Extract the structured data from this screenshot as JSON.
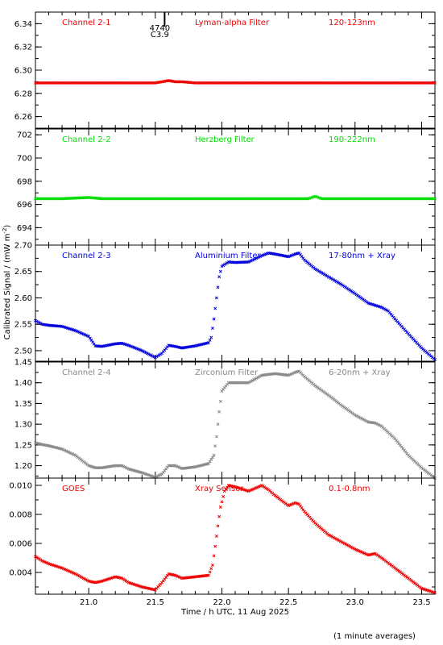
{
  "figure": {
    "xlabel": "Time / h UTC, 11 Aug 2025",
    "ylabel": "Calibrated Signal / (mW m",
    "ylabel_sup": "-2",
    "ylabel_end": ")",
    "footnote": "(1 minute averages)"
  },
  "marker": {
    "x": 21.57,
    "label_top": "4740",
    "label_bottom": "C3.9"
  },
  "chart_data": [
    {
      "type": "scatter",
      "channel": "Channel 2-1",
      "filter": "Lyman-alpha Filter",
      "band": "120-123nm",
      "color": "#ee0000",
      "xlim": [
        20.6,
        23.6
      ],
      "ylim": [
        6.25,
        6.35
      ],
      "yticks": [
        6.26,
        6.28,
        6.3,
        6.32,
        6.34
      ],
      "yticklabels": [
        "6.26",
        "6.28",
        "6.30",
        "6.32",
        "6.34"
      ],
      "xticks": [
        21.0,
        21.5,
        22.0,
        22.5,
        23.0,
        23.5
      ],
      "points": [
        [
          20.6,
          6.289
        ],
        [
          20.8,
          6.289
        ],
        [
          21.0,
          6.289
        ],
        [
          21.2,
          6.289
        ],
        [
          21.4,
          6.289
        ],
        [
          21.5,
          6.289
        ],
        [
          21.55,
          6.29
        ],
        [
          21.6,
          6.291
        ],
        [
          21.65,
          6.29
        ],
        [
          21.7,
          6.29
        ],
        [
          21.8,
          6.289
        ],
        [
          22.0,
          6.289
        ],
        [
          22.2,
          6.289
        ],
        [
          22.4,
          6.289
        ],
        [
          22.6,
          6.289
        ],
        [
          22.8,
          6.289
        ],
        [
          23.0,
          6.289
        ],
        [
          23.2,
          6.289
        ],
        [
          23.4,
          6.289
        ],
        [
          23.6,
          6.289
        ]
      ]
    },
    {
      "type": "scatter",
      "channel": "Channel 2-2",
      "filter": "Herzberg Filter",
      "band": "190-222nm",
      "color": "#00dd00",
      "xlim": [
        20.6,
        23.6
      ],
      "ylim": [
        692.5,
        702.5
      ],
      "yticks": [
        694,
        696,
        698,
        700,
        702
      ],
      "yticklabels": [
        "694",
        "696",
        "698",
        "700",
        "702"
      ],
      "xticks": [
        21.0,
        21.5,
        22.0,
        22.5,
        23.0,
        23.5
      ],
      "points": [
        [
          20.6,
          696.5
        ],
        [
          20.8,
          696.5
        ],
        [
          21.0,
          696.6
        ],
        [
          21.1,
          696.5
        ],
        [
          21.3,
          696.5
        ],
        [
          21.5,
          696.5
        ],
        [
          21.7,
          696.5
        ],
        [
          21.9,
          696.5
        ],
        [
          22.1,
          696.5
        ],
        [
          22.3,
          696.5
        ],
        [
          22.5,
          696.5
        ],
        [
          22.65,
          696.5
        ],
        [
          22.7,
          696.7
        ],
        [
          22.75,
          696.5
        ],
        [
          22.9,
          696.5
        ],
        [
          23.1,
          696.5
        ],
        [
          23.3,
          696.5
        ],
        [
          23.5,
          696.5
        ],
        [
          23.6,
          696.5
        ]
      ]
    },
    {
      "type": "scatter",
      "channel": "Channel 2-3",
      "filter": "Aluminium Filter",
      "band": "17-80nm + Xray",
      "color": "#0000dd",
      "xlim": [
        20.6,
        23.6
      ],
      "ylim": [
        2.48,
        2.7
      ],
      "yticks": [
        2.5,
        2.55,
        2.6,
        2.65,
        2.7
      ],
      "yticklabels": [
        "2.50",
        "2.55",
        "2.60",
        "2.65",
        "2.70"
      ],
      "xticks": [
        21.0,
        21.5,
        22.0,
        22.5,
        23.0,
        23.5
      ],
      "points": [
        [
          20.6,
          2.557
        ],
        [
          20.65,
          2.55
        ],
        [
          20.7,
          2.548
        ],
        [
          20.8,
          2.546
        ],
        [
          20.9,
          2.538
        ],
        [
          21.0,
          2.527
        ],
        [
          21.05,
          2.509
        ],
        [
          21.1,
          2.508
        ],
        [
          21.2,
          2.513
        ],
        [
          21.25,
          2.514
        ],
        [
          21.3,
          2.51
        ],
        [
          21.4,
          2.5
        ],
        [
          21.5,
          2.487
        ],
        [
          21.55,
          2.495
        ],
        [
          21.6,
          2.51
        ],
        [
          21.65,
          2.508
        ],
        [
          21.7,
          2.505
        ],
        [
          21.8,
          2.509
        ],
        [
          21.85,
          2.512
        ],
        [
          21.9,
          2.515
        ],
        [
          21.92,
          2.525
        ],
        [
          21.94,
          2.56
        ],
        [
          21.96,
          2.6
        ],
        [
          21.98,
          2.64
        ],
        [
          22.0,
          2.66
        ],
        [
          22.05,
          2.668
        ],
        [
          22.1,
          2.667
        ],
        [
          22.2,
          2.668
        ],
        [
          22.3,
          2.68
        ],
        [
          22.35,
          2.685
        ],
        [
          22.4,
          2.683
        ],
        [
          22.5,
          2.678
        ],
        [
          22.55,
          2.683
        ],
        [
          22.58,
          2.685
        ],
        [
          22.62,
          2.672
        ],
        [
          22.7,
          2.655
        ],
        [
          22.8,
          2.64
        ],
        [
          22.9,
          2.625
        ],
        [
          23.0,
          2.608
        ],
        [
          23.1,
          2.59
        ],
        [
          23.2,
          2.582
        ],
        [
          23.25,
          2.575
        ],
        [
          23.3,
          2.56
        ],
        [
          23.4,
          2.532
        ],
        [
          23.5,
          2.505
        ],
        [
          23.6,
          2.483
        ]
      ]
    },
    {
      "type": "scatter",
      "channel": "Channel 2-4",
      "filter": "Zirconium Filter",
      "band": "6-20nm + Xray",
      "color": "#888888",
      "xlim": [
        20.6,
        23.6
      ],
      "ylim": [
        1.17,
        1.45
      ],
      "yticks": [
        1.2,
        1.25,
        1.3,
        1.35,
        1.4,
        1.45
      ],
      "yticklabels": [
        "1.20",
        "1.25",
        "1.30",
        "1.35",
        "1.40",
        "1.45"
      ],
      "xticks": [
        21.0,
        21.5,
        22.0,
        22.5,
        23.0,
        23.5
      ],
      "points": [
        [
          20.6,
          1.255
        ],
        [
          20.65,
          1.251
        ],
        [
          20.7,
          1.248
        ],
        [
          20.8,
          1.24
        ],
        [
          20.9,
          1.225
        ],
        [
          21.0,
          1.2
        ],
        [
          21.05,
          1.195
        ],
        [
          21.1,
          1.195
        ],
        [
          21.2,
          1.2
        ],
        [
          21.25,
          1.2
        ],
        [
          21.3,
          1.192
        ],
        [
          21.4,
          1.183
        ],
        [
          21.5,
          1.172
        ],
        [
          21.55,
          1.18
        ],
        [
          21.6,
          1.2
        ],
        [
          21.65,
          1.2
        ],
        [
          21.7,
          1.193
        ],
        [
          21.8,
          1.197
        ],
        [
          21.9,
          1.205
        ],
        [
          21.94,
          1.225
        ],
        [
          21.96,
          1.27
        ],
        [
          21.98,
          1.33
        ],
        [
          22.0,
          1.38
        ],
        [
          22.05,
          1.4
        ],
        [
          22.1,
          1.4
        ],
        [
          22.2,
          1.4
        ],
        [
          22.3,
          1.418
        ],
        [
          22.4,
          1.422
        ],
        [
          22.5,
          1.418
        ],
        [
          22.55,
          1.425
        ],
        [
          22.58,
          1.428
        ],
        [
          22.62,
          1.415
        ],
        [
          22.7,
          1.393
        ],
        [
          22.8,
          1.37
        ],
        [
          22.9,
          1.345
        ],
        [
          23.0,
          1.322
        ],
        [
          23.1,
          1.305
        ],
        [
          23.15,
          1.303
        ],
        [
          23.2,
          1.295
        ],
        [
          23.3,
          1.265
        ],
        [
          23.4,
          1.225
        ],
        [
          23.5,
          1.195
        ],
        [
          23.6,
          1.17
        ]
      ]
    },
    {
      "type": "scatter",
      "channel": "GOES",
      "filter": "Xray Sensor",
      "band": "0.1-0.8nm",
      "color": "#ee0000",
      "xlim": [
        20.6,
        23.6
      ],
      "ylim": [
        0.0025,
        0.0105
      ],
      "yticks": [
        0.004,
        0.006,
        0.008,
        0.01
      ],
      "yticklabels": [
        "0.004",
        "0.006",
        "0.008",
        "0.010"
      ],
      "xticks": [
        21.0,
        21.5,
        22.0,
        22.5,
        23.0,
        23.5
      ],
      "xticklabels": [
        "21.0",
        "21.5",
        "22.0",
        "22.5",
        "23.0",
        "23.5"
      ],
      "points": [
        [
          20.6,
          0.0051
        ],
        [
          20.65,
          0.0048
        ],
        [
          20.7,
          0.0046
        ],
        [
          20.8,
          0.0043
        ],
        [
          20.9,
          0.0039
        ],
        [
          21.0,
          0.0034
        ],
        [
          21.05,
          0.0033
        ],
        [
          21.1,
          0.0034
        ],
        [
          21.2,
          0.0037
        ],
        [
          21.25,
          0.0036
        ],
        [
          21.3,
          0.0033
        ],
        [
          21.4,
          0.003
        ],
        [
          21.5,
          0.0028
        ],
        [
          21.55,
          0.0033
        ],
        [
          21.6,
          0.0039
        ],
        [
          21.65,
          0.0038
        ],
        [
          21.7,
          0.0036
        ],
        [
          21.8,
          0.0037
        ],
        [
          21.9,
          0.0038
        ],
        [
          21.93,
          0.0045
        ],
        [
          21.95,
          0.0058
        ],
        [
          21.97,
          0.0072
        ],
        [
          21.99,
          0.0085
        ],
        [
          22.02,
          0.0096
        ],
        [
          22.05,
          0.01
        ],
        [
          22.1,
          0.0099
        ],
        [
          22.2,
          0.0096
        ],
        [
          22.3,
          0.01
        ],
        [
          22.35,
          0.0097
        ],
        [
          22.4,
          0.0093
        ],
        [
          22.5,
          0.0086
        ],
        [
          22.55,
          0.0088
        ],
        [
          22.58,
          0.0087
        ],
        [
          22.62,
          0.0082
        ],
        [
          22.7,
          0.0074
        ],
        [
          22.8,
          0.0066
        ],
        [
          22.9,
          0.0061
        ],
        [
          23.0,
          0.0056
        ],
        [
          23.1,
          0.0052
        ],
        [
          23.15,
          0.0053
        ],
        [
          23.2,
          0.005
        ],
        [
          23.3,
          0.0043
        ],
        [
          23.4,
          0.0036
        ],
        [
          23.5,
          0.0029
        ],
        [
          23.6,
          0.0026
        ]
      ]
    }
  ]
}
